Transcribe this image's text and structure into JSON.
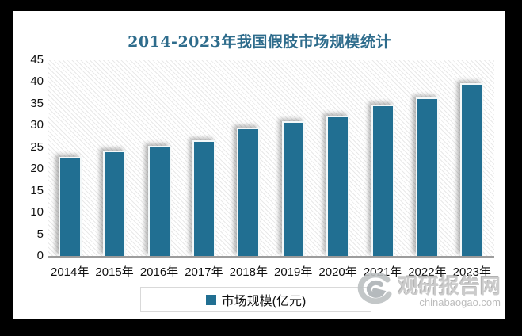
{
  "frame": {
    "background_color": "#000000",
    "panel_color": "#ffffff"
  },
  "chart_data": {
    "type": "bar",
    "title": "2014-2023年我国假肢市场规模统计",
    "title_color": "#2e6c8c",
    "categories": [
      "2014年",
      "2015年",
      "2016年",
      "2017年",
      "2018年",
      "2019年",
      "2020年",
      "2021年",
      "2022年",
      "2023年"
    ],
    "values": [
      22.8,
      24.3,
      25.4,
      26.6,
      29.6,
      31.0,
      32.3,
      34.8,
      36.5,
      39.7
    ],
    "series_name": "市场规模(亿元)",
    "xlabel": "",
    "ylabel": "",
    "ylim": [
      0,
      45
    ],
    "yticks": [
      0,
      5,
      10,
      15,
      20,
      25,
      30,
      35,
      40,
      45
    ],
    "grid": false,
    "plot_hatch": "light-diagonal-stripes",
    "bar_color": "#216f92",
    "axis_line_color": "#9d9d9d",
    "legend_position": "bottom"
  },
  "legend": {
    "label": "市场规模(亿元)",
    "swatch_color": "#216f92"
  },
  "watermark": {
    "logo": "swirl-g-logo",
    "site_name": "观研报告网",
    "site_url": "chinabaogao.com",
    "color": "#c6c6c6"
  }
}
